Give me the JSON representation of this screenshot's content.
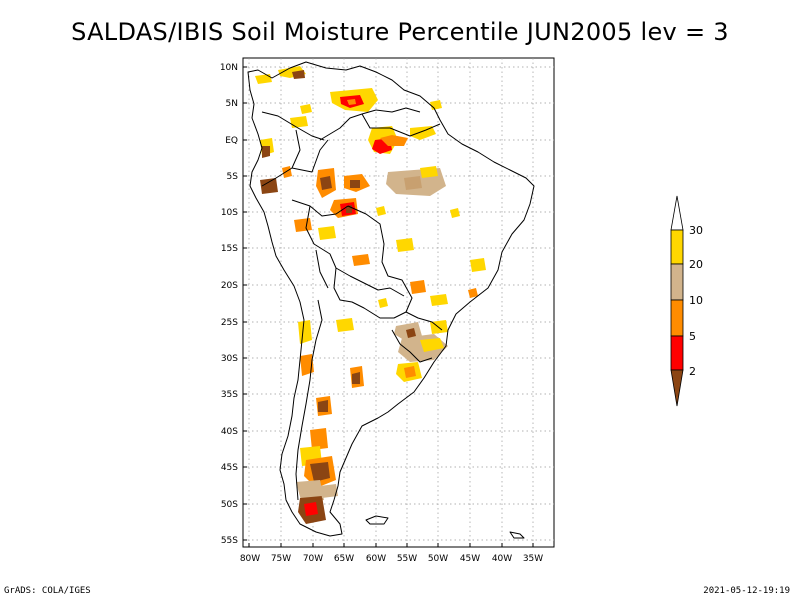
{
  "title": "SALDAS/IBIS Soil Moisture Percentile JUN2005 lev = 3",
  "footer": {
    "left": "GrADS: COLA/IGES",
    "right": "2021-05-12-19:19"
  },
  "map": {
    "lat_labels": [
      "10N",
      "5N",
      "EQ",
      "5S",
      "10S",
      "15S",
      "20S",
      "25S",
      "30S",
      "35S",
      "40S",
      "45S",
      "50S",
      "55S"
    ],
    "lon_labels": [
      "80W",
      "75W",
      "70W",
      "65W",
      "60W",
      "55W",
      "50W",
      "45W",
      "40W",
      "35W"
    ]
  },
  "legend": {
    "labels": [
      "2",
      "5",
      "10",
      "20",
      "30"
    ],
    "colors": [
      "#8b4513",
      "#ff0000",
      "#ff8c00",
      "#d2b48c",
      "#ffd700",
      "#ffffff"
    ]
  },
  "regions": [
    {
      "name": "south-america-outline"
    }
  ]
}
